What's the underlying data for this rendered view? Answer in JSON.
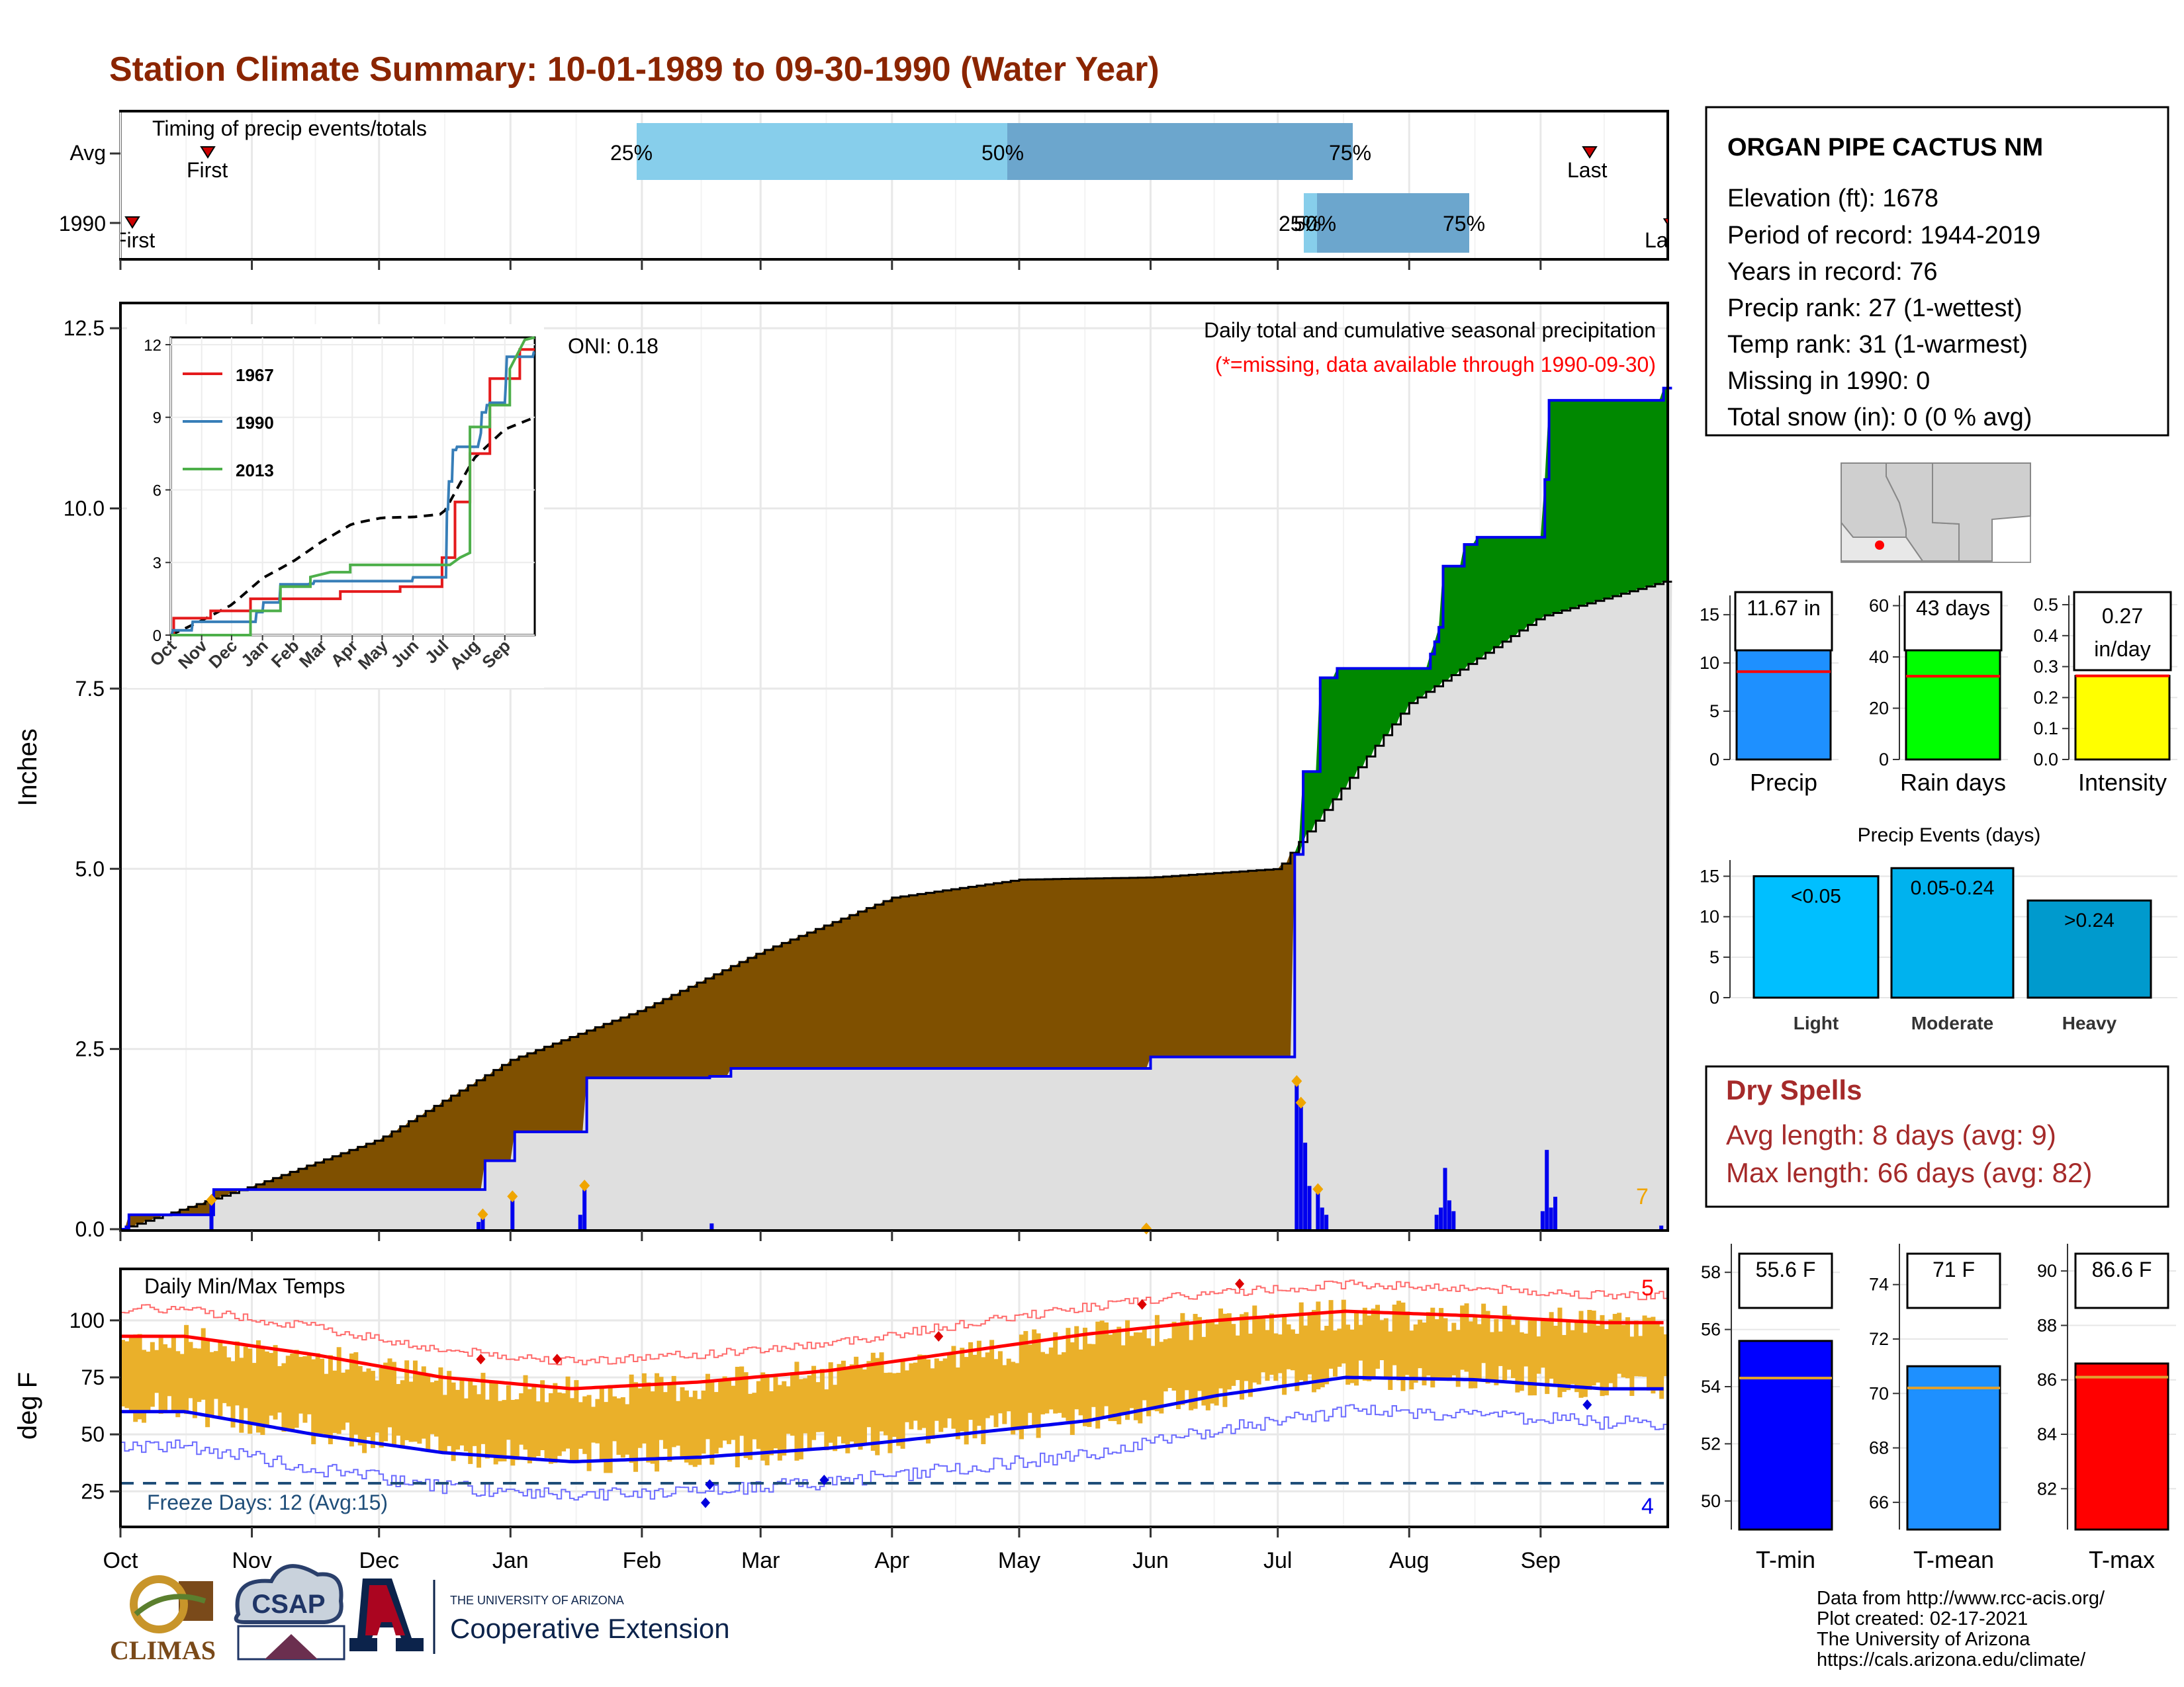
{
  "title": "Station Climate Summary: 10-01-1989 to 09-30-1990 (Water Year)",
  "colors": {
    "title": "#8B2500",
    "brown": "#7F5000",
    "green": "#008800",
    "gray_fill": "#DFDFDF",
    "blue": "#0000EE",
    "timing_light": "#87CEEB",
    "timing_dark": "#6CA6CD",
    "orange": "#F0A500",
    "red": "#FF0000",
    "dryspell": "#A52A2A"
  },
  "months": [
    "Oct",
    "Nov",
    "Dec",
    "Jan",
    "Feb",
    "Mar",
    "Apr",
    "May",
    "Jun",
    "Jul",
    "Aug",
    "Sep"
  ],
  "timing": {
    "label": "Timing of precip events/totals",
    "rows": [
      "Avg",
      "1990"
    ],
    "avg": {
      "first_label": "First",
      "last_label": "Last",
      "p25": "25%",
      "p50": "50%",
      "p75": "75%"
    },
    "y1990": {
      "first_label": "First",
      "last_label": "Last",
      "p25": "25%",
      "p50": "50%",
      "p75": "75%"
    }
  },
  "precip_panel": {
    "ylabel": "Inches",
    "yticks": [
      "0.0",
      "2.5",
      "5.0",
      "7.5",
      "10.0",
      "12.5"
    ],
    "oni": "ONI: 0.18",
    "title": "Daily total and cumulative seasonal precipitation",
    "subtitle": "(*=missing, data available through 1990-09-30)",
    "count": "7"
  },
  "inset": {
    "yticks": [
      "0",
      "3",
      "6",
      "9",
      "12"
    ],
    "months": [
      "Oct",
      "Nov",
      "Dec",
      "Jan",
      "Feb",
      "Mar",
      "Apr",
      "May",
      "Jun",
      "Jul",
      "Aug",
      "Sep"
    ],
    "legend": [
      "1967",
      "1990",
      "2013"
    ]
  },
  "temp_panel": {
    "ylabel": "deg F",
    "title": "Daily Min/Max Temps",
    "yticks": [
      "25",
      "50",
      "75",
      "100"
    ],
    "freeze": "Freeze Days: 12 (Avg:15)",
    "count_hi": "5",
    "count_lo": "4"
  },
  "station": {
    "name": "ORGAN PIPE CACTUS NM",
    "lines": [
      "Elevation (ft): 1678",
      "Period of record: 1944-2019",
      "Years in record: 76",
      "Precip rank: 27 (1-wettest)",
      "Temp rank: 31 (1-warmest)",
      "Missing in 1990: 0",
      "Total snow (in): 0 (0 % avg)"
    ]
  },
  "stat_bars": {
    "precip": {
      "label": "Precip",
      "box": "11.67 in",
      "yticks": [
        "0",
        "5",
        "10",
        "15"
      ]
    },
    "raindays": {
      "label": "Rain days",
      "box": "43 days",
      "yticks": [
        "0",
        "20",
        "40",
        "60"
      ]
    },
    "intensity": {
      "label": "Intensity",
      "box1": "0.27",
      "box2": "in/day",
      "yticks": [
        "0.0",
        "0.1",
        "0.2",
        "0.3",
        "0.4",
        "0.5"
      ]
    }
  },
  "events": {
    "title": "Precip Events (days)",
    "yticks": [
      "0",
      "5",
      "10",
      "15"
    ],
    "bars": [
      {
        "label": "<0.05",
        "cat": "Light"
      },
      {
        "label": "0.05-0.24",
        "cat": "Moderate"
      },
      {
        "label": ">0.24",
        "cat": "Heavy"
      }
    ]
  },
  "dry_spells": {
    "title": "Dry Spells",
    "avg": "Avg length: 8 days (avg: 9)",
    "max": "Max length: 66 days (avg: 82)"
  },
  "temp_bars": {
    "tmin": {
      "label": "T-min",
      "box": "55.6 F",
      "yticks": [
        "50",
        "52",
        "54",
        "56",
        "58"
      ]
    },
    "tmean": {
      "label": "T-mean",
      "box": "71 F",
      "yticks": [
        "66",
        "68",
        "70",
        "72",
        "74"
      ]
    },
    "tmax": {
      "label": "T-max",
      "box": "86.6 F",
      "yticks": [
        "82",
        "84",
        "86",
        "88",
        "90"
      ]
    }
  },
  "footer": {
    "lines": [
      "Data from http://www.rcc-acis.org/",
      "Plot created: 02-17-2021",
      "The University of Arizona",
      "https://cals.arizona.edu/climate/"
    ],
    "climas": "CLIMAS",
    "csap": "CSAP",
    "ua_small": "THE UNIVERSITY OF ARIZONA",
    "ua_big": "Cooperative Extension"
  },
  "chart_data": [
    {
      "type": "area",
      "title": "Daily total and cumulative seasonal precipitation",
      "ylabel": "Inches",
      "ylim": [
        0,
        12.8
      ],
      "series": [
        {
          "name": "1990",
          "x": [
            "1989-10-01",
            "1989-10-03",
            "1989-10-22",
            "1989-10-23",
            "1989-12-25",
            "1989-12-26",
            "1990-01-01",
            "1990-01-02",
            "1990-01-18",
            "1990-01-19",
            "1990-02-16",
            "1990-02-17",
            "1990-02-21",
            "1990-02-22",
            "1990-05-31",
            "1990-06-01",
            "1990-07-04",
            "1990-07-05",
            "1990-07-06",
            "1990-07-07",
            "1990-07-10",
            "1990-07-11",
            "1990-07-15",
            "1990-08-01",
            "1990-08-06",
            "1990-08-07",
            "1990-08-08",
            "1990-08-09",
            "1990-08-13",
            "1990-08-14",
            "1990-08-16",
            "1990-08-17",
            "1990-09-01",
            "1990-09-02",
            "1990-09-03",
            "1990-09-30"
          ],
          "values": [
            0.0,
            0.2,
            0.2,
            0.55,
            0.55,
            0.95,
            0.95,
            1.35,
            1.35,
            2.1,
            2.1,
            2.12,
            2.12,
            2.23,
            2.23,
            2.39,
            2.39,
            5.2,
            5.2,
            6.35,
            6.35,
            7.65,
            7.78,
            7.78,
            7.98,
            8.15,
            8.35,
            9.2,
            9.2,
            9.5,
            9.5,
            9.6,
            9.6,
            10.4,
            11.5,
            11.67
          ]
        },
        {
          "name": "Avg",
          "x": [
            "Oct",
            "Nov",
            "Dec",
            "Jan",
            "Feb",
            "Mar",
            "Apr",
            "May",
            "Jun",
            "Jul",
            "Aug",
            "Sep",
            "Sep-30"
          ],
          "values": [
            0.0,
            0.6,
            1.25,
            2.35,
            3.05,
            3.85,
            4.6,
            4.85,
            4.88,
            5.0,
            7.3,
            8.5,
            9.0
          ]
        }
      ],
      "daily_precip": [
        {
          "date": "1989-10-22",
          "in": 0.35
        },
        {
          "date": "1989-12-25",
          "in": 0.15
        },
        {
          "date": "1990-01-01",
          "in": 0.4
        },
        {
          "date": "1990-01-18",
          "in": 0.55
        },
        {
          "date": "1990-07-05",
          "in": 2.0
        },
        {
          "date": "1990-07-06",
          "in": 1.7
        },
        {
          "date": "1990-07-10",
          "in": 0.5
        },
        {
          "date": "1990-08-09",
          "in": 0.85
        },
        {
          "date": "1990-09-02",
          "in": 1.1
        }
      ]
    },
    {
      "type": "line",
      "title": "Daily Min/Max Temps",
      "ylabel": "deg F",
      "ylim": [
        10,
        122
      ],
      "categories": [
        "Oct",
        "Nov",
        "Dec",
        "Jan",
        "Feb",
        "Mar",
        "Apr",
        "May",
        "Jun",
        "Jul",
        "Aug",
        "Sep"
      ],
      "series": [
        {
          "name": "Avg max",
          "values": [
            93,
            85,
            75,
            70,
            73,
            78,
            86,
            94,
            100,
            104,
            102,
            99
          ]
        },
        {
          "name": "Avg min",
          "values": [
            60,
            50,
            42,
            38,
            40,
            44,
            50,
            56,
            67,
            75,
            74,
            70
          ]
        }
      ]
    },
    {
      "type": "bar",
      "title": "Precip Events (days)",
      "categories": [
        "Light",
        "Moderate",
        "Heavy"
      ],
      "values": [
        15,
        16,
        12
      ]
    }
  ]
}
